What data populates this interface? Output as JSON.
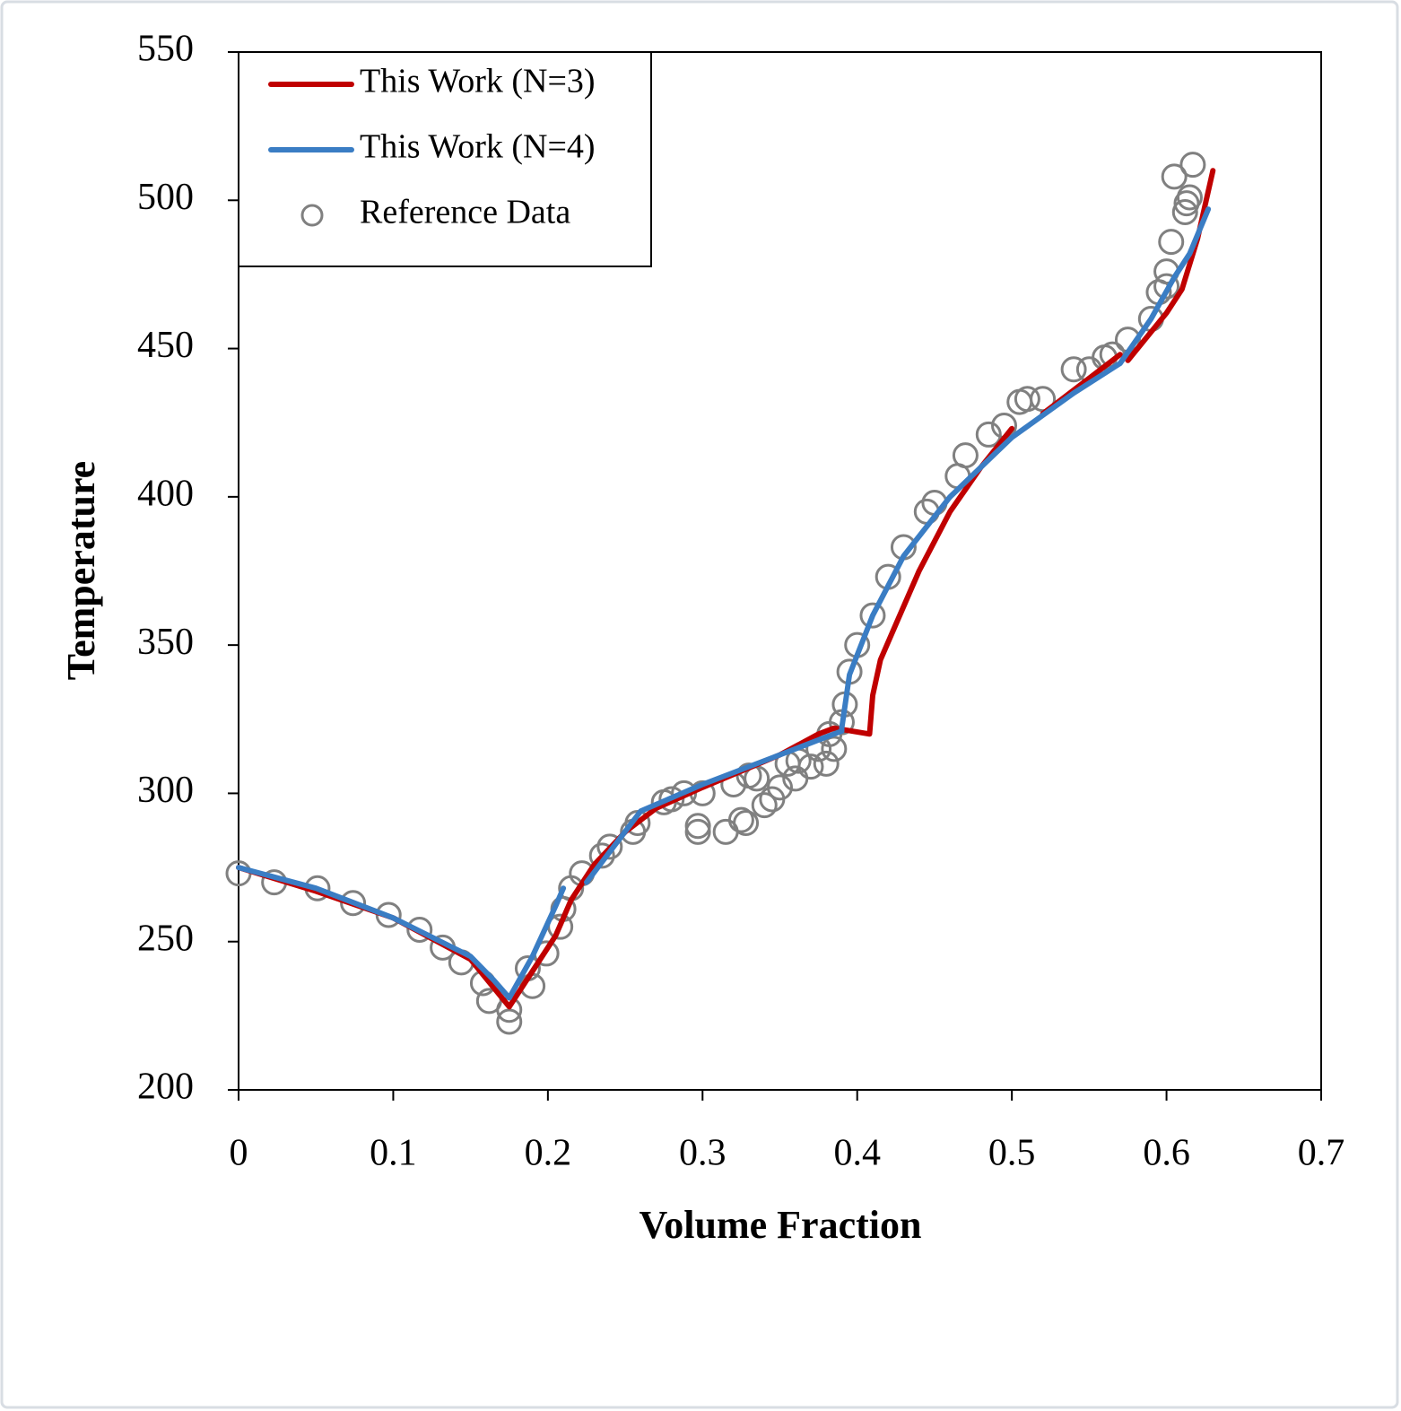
{
  "chart_data": {
    "type": "line",
    "x_label": "Volume Fraction",
    "y_label": "Temperature",
    "xlim": [
      0,
      0.7
    ],
    "xticks": [
      0,
      0.1,
      0.2,
      0.3,
      0.4,
      0.5,
      0.6,
      0.7
    ],
    "ylim": [
      200,
      550
    ],
    "yticks": [
      200,
      250,
      300,
      350,
      400,
      450,
      500,
      550
    ],
    "legend": "top-left",
    "series": [
      {
        "name": "This Work (N=3)",
        "type": "line",
        "color": "#c00000",
        "x": [
          0,
          0.05,
          0.1,
          0.15,
          0.175,
          0.19,
          0.205,
          0.215,
          0.23,
          0.25,
          0.27,
          0.3,
          0.35,
          0.375,
          0.385,
          0.408,
          0.41,
          0.415,
          0.425,
          0.44,
          0.46,
          0.48,
          0.5,
          0.5,
          0.52,
          0.55,
          0.57,
          0.565,
          0.575,
          0.6,
          0.61,
          0.62,
          0.63
        ],
        "values": [
          275,
          267,
          258,
          244,
          228,
          240,
          252,
          264,
          276,
          287,
          295,
          302,
          313,
          320,
          322,
          320,
          333,
          345,
          357,
          375,
          395,
          410,
          423,
          null,
          428,
          440,
          448,
          null,
          446,
          462,
          470,
          487,
          510
        ]
      },
      {
        "name": "This Work (N=4)",
        "type": "line",
        "color": "#3a7dc4",
        "x": [
          0,
          0.05,
          0.1,
          0.15,
          0.165,
          0.175,
          0.19,
          0.205,
          0.21,
          0.205,
          0.225,
          0.26,
          0.3,
          0.35,
          0.38,
          0.39,
          0.39,
          0.395,
          0.41,
          0.43,
          0.46,
          0.5,
          0.54,
          0.57,
          0.59,
          0.605,
          0.615,
          0.627
        ],
        "values": [
          275,
          268,
          258,
          245,
          237,
          231,
          245,
          262,
          268,
          null,
          270,
          294,
          303,
          313,
          319,
          321,
          322,
          340,
          360,
          380,
          400,
          420,
          435,
          445,
          460,
          474,
          482,
          497
        ]
      },
      {
        "name": "Reference Data",
        "type": "scatter",
        "color": "#808080",
        "x": [
          0,
          0.023,
          0.051,
          0.074,
          0.097,
          0.117,
          0.132,
          0.144,
          0.158,
          0.162,
          0.175,
          0.175,
          0.187,
          0.19,
          0.199,
          0.208,
          0.21,
          0.215,
          0.222,
          0.235,
          0.24,
          0.255,
          0.258,
          0.275,
          0.28,
          0.288,
          0.297,
          0.297,
          0.3,
          0.315,
          0.32,
          0.325,
          0.328,
          0.33,
          0.335,
          0.34,
          0.345,
          0.35,
          0.355,
          0.36,
          0.362,
          0.37,
          0.375,
          0.38,
          0.382,
          0.385,
          0.39,
          0.392,
          0.395,
          0.4,
          0.41,
          0.42,
          0.43,
          0.445,
          0.45,
          0.465,
          0.47,
          0.485,
          0.495,
          0.505,
          0.51,
          0.52,
          0.54,
          0.55,
          0.56,
          0.565,
          0.575,
          0.59,
          0.595,
          0.6,
          0.6,
          0.603,
          0.605,
          0.612,
          0.613,
          0.615,
          0.617
        ],
        "values": [
          273,
          270,
          268,
          263,
          259,
          254,
          248,
          243,
          236,
          230,
          227,
          223,
          241,
          235,
          246,
          255,
          261,
          268,
          273,
          279,
          282,
          287,
          290,
          297,
          298,
          300,
          287,
          289,
          300,
          287,
          303,
          291,
          290,
          306,
          305,
          296,
          298,
          302,
          310,
          305,
          311,
          309,
          315,
          310,
          320,
          315,
          324,
          330,
          341,
          350,
          360,
          373,
          383,
          395,
          398,
          407,
          414,
          421,
          424,
          432,
          433,
          433,
          443,
          443,
          447,
          448,
          453,
          460,
          469,
          471,
          476,
          486,
          508,
          496,
          499,
          501,
          512
        ]
      }
    ]
  }
}
